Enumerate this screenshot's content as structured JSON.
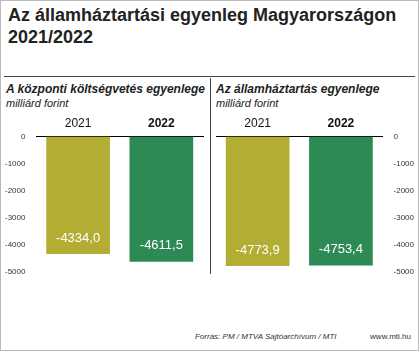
{
  "title": [
    "Az államháztartási egyenleg Magyarországon",
    "2021/2022"
  ],
  "chart_data": [
    {
      "type": "bar",
      "title": "A központi költségvetés egyenlege",
      "subtitle": "milliárd forint",
      "categories": [
        "2021",
        "2022"
      ],
      "values": [
        -4334.0,
        -4611.5
      ],
      "value_labels": [
        "-4334,0",
        "-4611,5"
      ],
      "colors": [
        "#b3ad34",
        "#2e8a55"
      ],
      "ylim": [
        -5000,
        0
      ],
      "yticks": [
        -5000,
        -4000,
        -3000,
        -2000,
        -1000,
        0
      ],
      "grid": false,
      "data_labels": true
    },
    {
      "type": "bar",
      "title": "Az államháztartás egyenlege",
      "subtitle": "milliárd forint",
      "categories": [
        "2021",
        "2022"
      ],
      "values": [
        -4773.9,
        -4753.4
      ],
      "value_labels": [
        "-4773,9",
        "-4753,4"
      ],
      "colors": [
        "#b3ad34",
        "#2e8a55"
      ],
      "ylim": [
        -5000,
        0
      ],
      "yticks": [
        -5000,
        -4000,
        -3000,
        -2000,
        -1000,
        0
      ],
      "grid": false,
      "data_labels": true
    }
  ],
  "source": "Forrás: PM / MTVA Sajtóarchívum / MTI",
  "website": "www.mti.hu"
}
